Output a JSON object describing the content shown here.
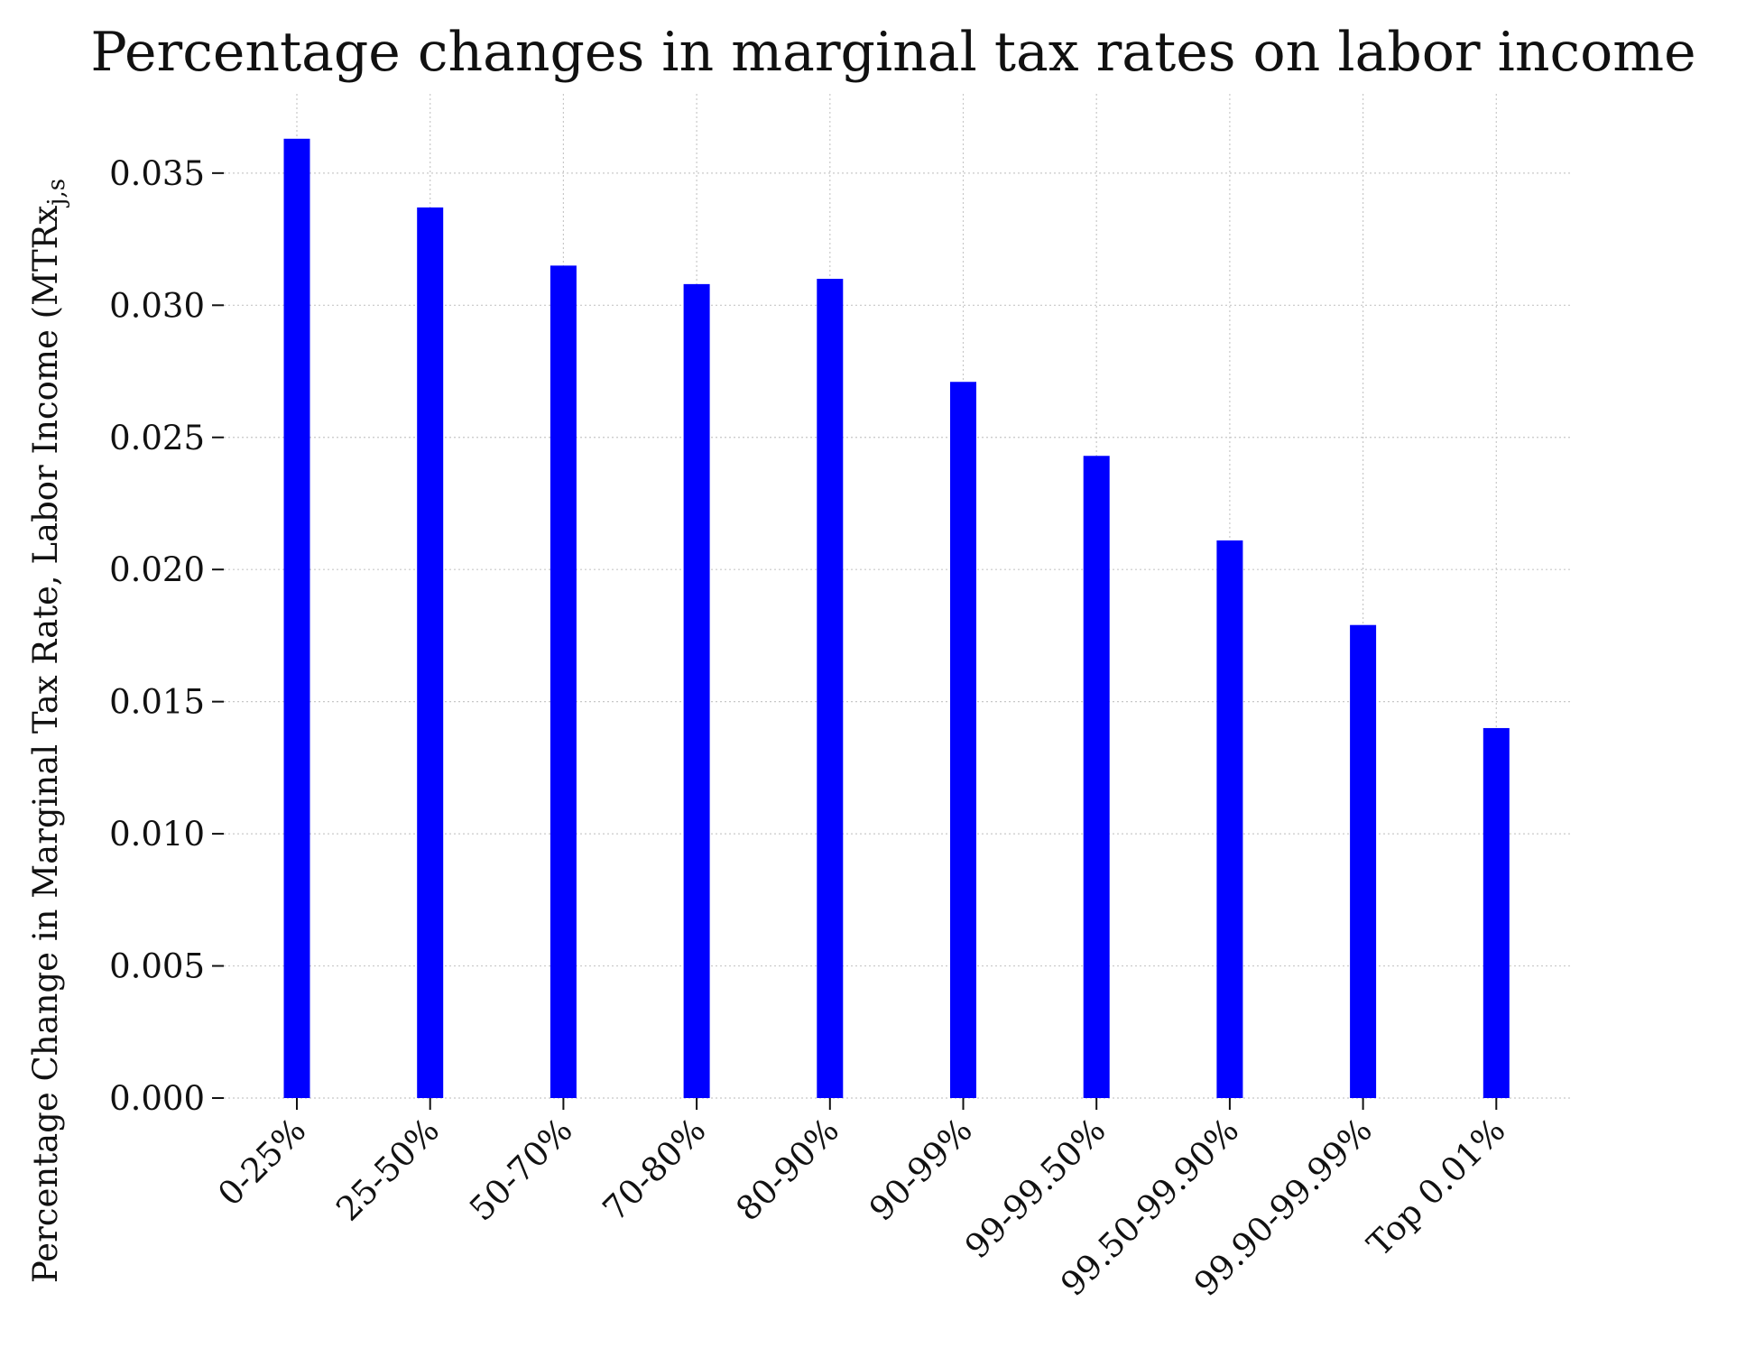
{
  "chart_data": {
    "type": "bar",
    "title": "Percentage changes in marginal tax rates on labor income",
    "ylabel": "Percentage Change in Marginal Tax Rate, Labor Income (MTRx",
    "ylabel_subscript": "j,s",
    "xlabel": "",
    "categories": [
      "0-25%",
      "25-50%",
      "50-70%",
      "70-80%",
      "80-90%",
      "90-99%",
      "99-99.50%",
      "99.50-99.90%",
      "99.90-99.99%",
      "Top 0.01%"
    ],
    "values": [
      0.0363,
      0.0337,
      0.0315,
      0.0308,
      0.031,
      0.0271,
      0.0243,
      0.0211,
      0.0179,
      0.014
    ],
    "ylim": [
      0,
      0.038
    ],
    "yticks": [
      "0.000",
      "0.005",
      "0.010",
      "0.015",
      "0.020",
      "0.025",
      "0.030",
      "0.035"
    ],
    "ytick_values": [
      0,
      0.005,
      0.01,
      0.015,
      0.02,
      0.025,
      0.03,
      0.035
    ],
    "grid": true,
    "bar_color": "#0000ff"
  }
}
